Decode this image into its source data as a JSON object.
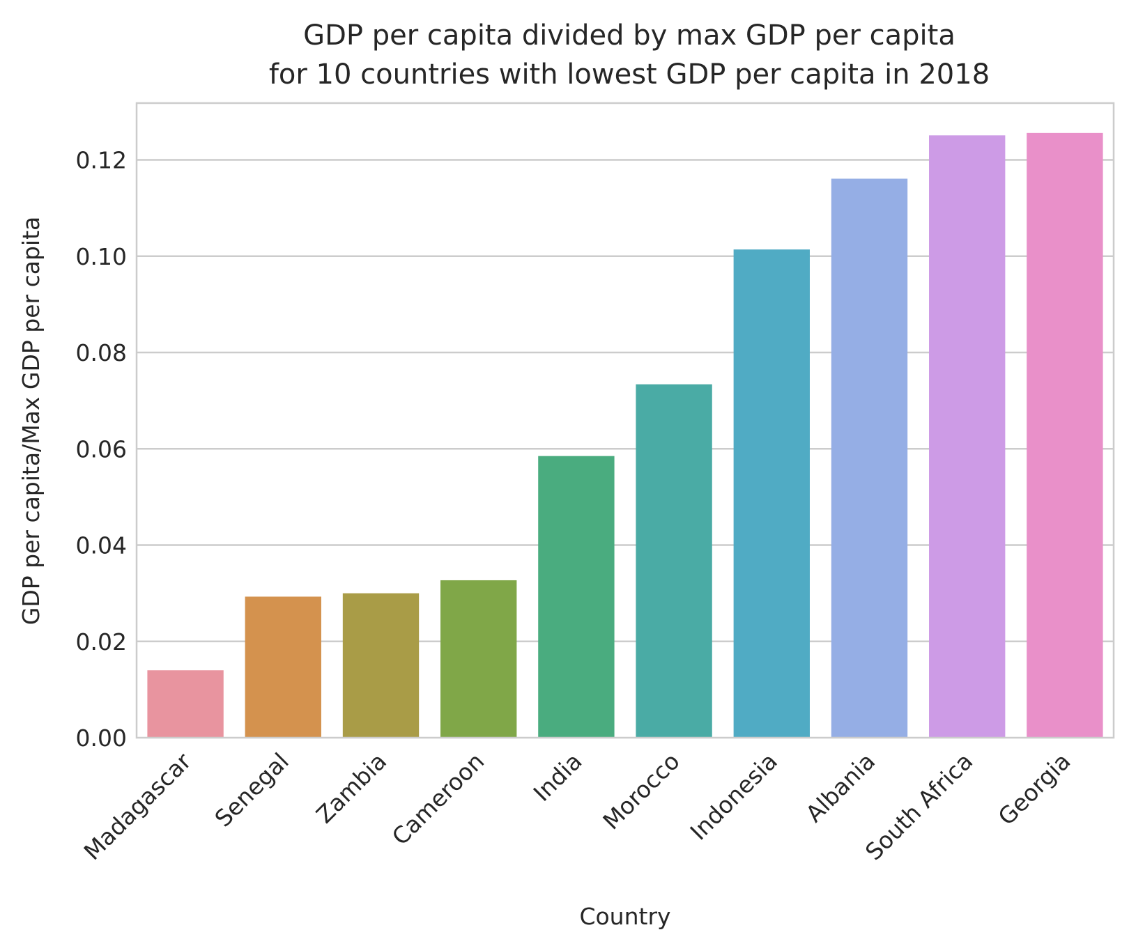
{
  "chart_data": {
    "type": "bar",
    "title_line1": "GDP per capita divided by max GDP per capita",
    "title_line2": "for 10 countries with lowest GDP per capita in 2018",
    "xlabel": "Country",
    "ylabel": "GDP per capita/Max GDP per capita",
    "categories": [
      "Madagascar",
      "Senegal",
      "Zambia",
      "Cameroon",
      "India",
      "Morocco",
      "Indonesia",
      "Albania",
      "South Africa",
      "Georgia"
    ],
    "values": [
      0.014,
      0.0293,
      0.03,
      0.0327,
      0.0585,
      0.0734,
      0.1014,
      0.1161,
      0.1251,
      0.1256
    ],
    "colors": [
      "#e8949f",
      "#d4924e",
      "#a99c47",
      "#80a748",
      "#4aac7f",
      "#4aaba5",
      "#50abc4",
      "#95aee5",
      "#cd9be6",
      "#e990c9"
    ],
    "ylim": [
      0,
      0.1318
    ],
    "yticks": [
      "0.00",
      "0.02",
      "0.04",
      "0.06",
      "0.08",
      "0.10",
      "0.12"
    ],
    "ytick_values": [
      0,
      0.02,
      0.04,
      0.06,
      0.08,
      0.1,
      0.12
    ],
    "grid": true
  }
}
